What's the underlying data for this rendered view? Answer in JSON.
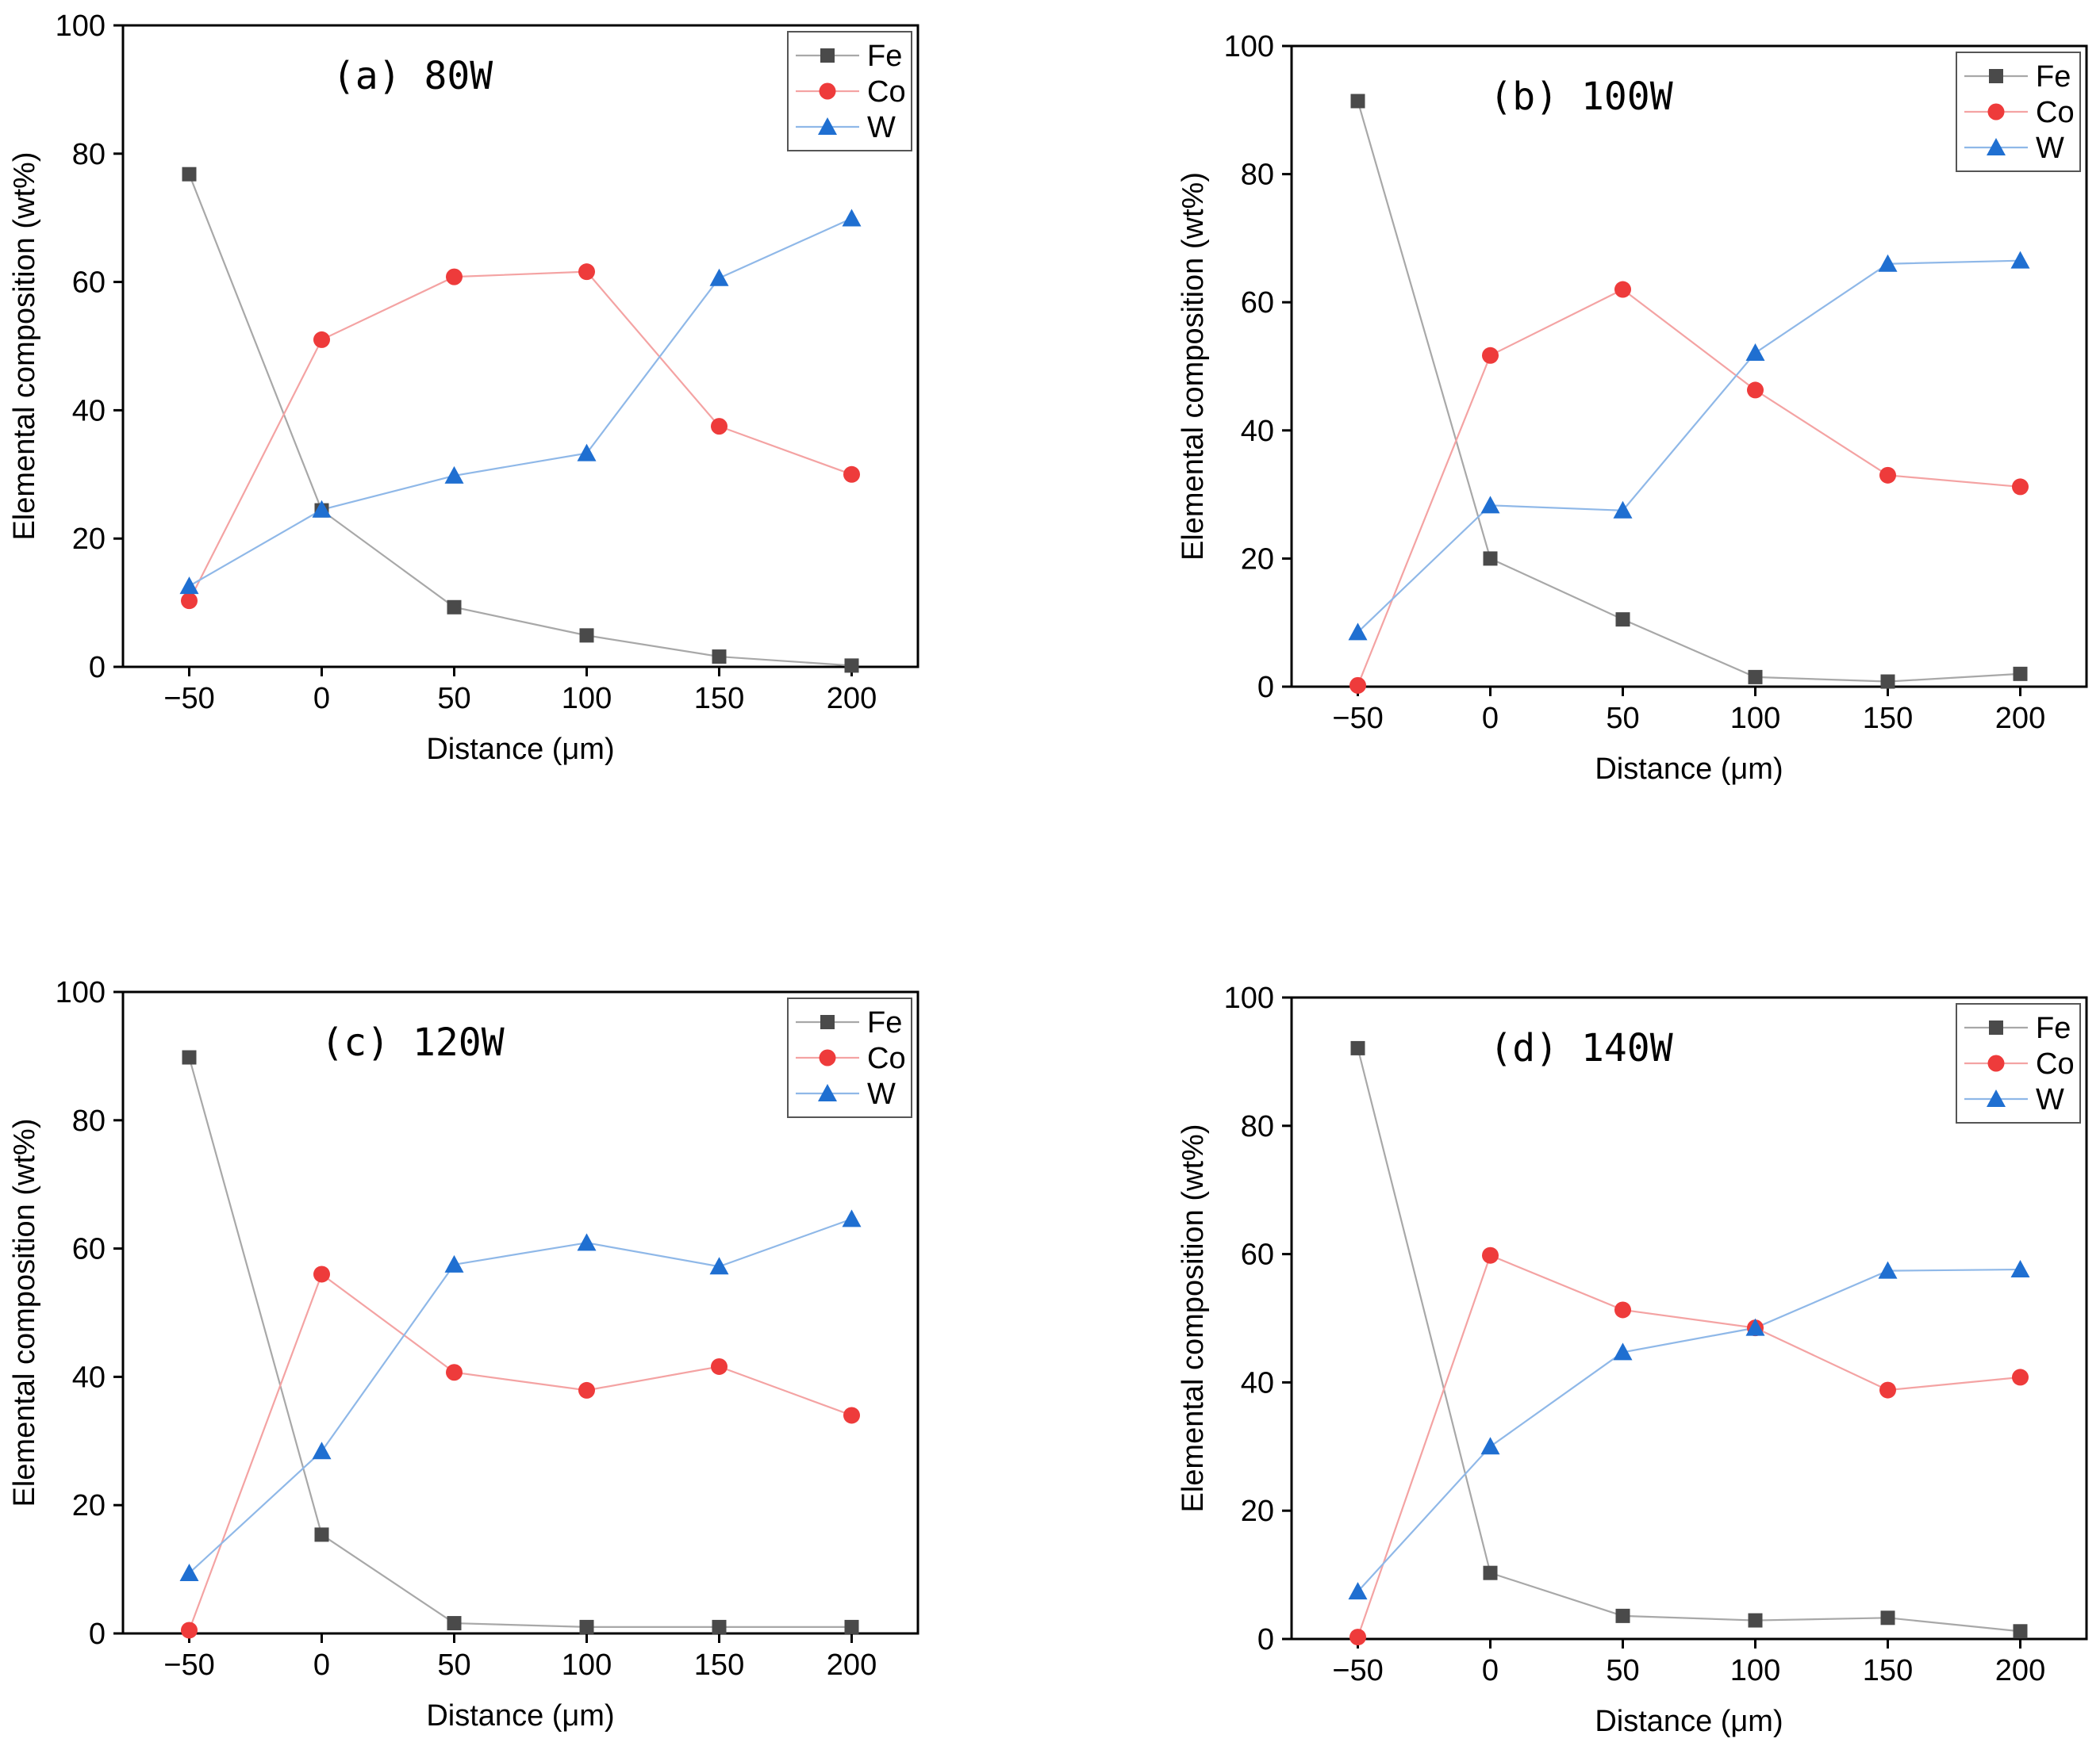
{
  "chart_data": [
    {
      "type": "line",
      "title": "(a)  80W",
      "xlabel": "Distance (μm)",
      "ylabel": "Elemental composition (wt%)",
      "x": [
        -50,
        0,
        50,
        100,
        150,
        200
      ],
      "xticks": [
        "-50",
        "0",
        "50",
        "100",
        "150",
        "200"
      ],
      "yticks": [
        "0",
        "20",
        "40",
        "60",
        "80",
        "100"
      ],
      "xlim": [
        -75,
        225
      ],
      "ylim": [
        0,
        100
      ],
      "legend_position": "top-right",
      "series": [
        {
          "name": "Fe",
          "color": "#4a4a4a",
          "line_color": "#a8a8a8",
          "marker": "square",
          "values": [
            76.8,
            24.4,
            9.3,
            4.9,
            1.6,
            0.2
          ]
        },
        {
          "name": "Co",
          "color": "#ee3b3b",
          "line_color": "#f4a3a3",
          "marker": "circle",
          "values": [
            10.3,
            51.0,
            60.8,
            61.6,
            37.5,
            30.0
          ]
        },
        {
          "name": "W",
          "color": "#1f6fd1",
          "line_color": "#8fb8e8",
          "marker": "triangle",
          "values": [
            12.6,
            24.5,
            29.8,
            33.3,
            60.6,
            69.9
          ]
        }
      ]
    },
    {
      "type": "line",
      "title": "(b)  100W",
      "xlabel": "Distance (μm)",
      "ylabel": "Elemental composition (wt%)",
      "x": [
        -50,
        0,
        50,
        100,
        150,
        200
      ],
      "xticks": [
        "-50",
        "0",
        "50",
        "100",
        "150",
        "200"
      ],
      "yticks": [
        "0",
        "20",
        "40",
        "60",
        "80",
        "100"
      ],
      "xlim": [
        -75,
        225
      ],
      "ylim": [
        0,
        100
      ],
      "legend_position": "top-right",
      "series": [
        {
          "name": "Fe",
          "color": "#4a4a4a",
          "line_color": "#a8a8a8",
          "marker": "square",
          "values": [
            91.4,
            20.0,
            10.5,
            1.5,
            0.8,
            2.0
          ]
        },
        {
          "name": "Co",
          "color": "#ee3b3b",
          "line_color": "#f4a3a3",
          "marker": "circle",
          "values": [
            0.2,
            51.7,
            62.0,
            46.3,
            33.0,
            31.2
          ]
        },
        {
          "name": "W",
          "color": "#1f6fd1",
          "line_color": "#8fb8e8",
          "marker": "triangle",
          "values": [
            8.5,
            28.3,
            27.5,
            52.1,
            66.0,
            66.5
          ]
        }
      ]
    },
    {
      "type": "line",
      "title": "(c)  120W",
      "xlabel": "Distance (μm)",
      "ylabel": "Elemental composition (wt%)",
      "x": [
        -50,
        0,
        50,
        100,
        150,
        200
      ],
      "xticks": [
        "-50",
        "0",
        "50",
        "100",
        "150",
        "200"
      ],
      "yticks": [
        "0",
        "20",
        "40",
        "60",
        "80",
        "100"
      ],
      "xlim": [
        -75,
        225
      ],
      "ylim": [
        0,
        100
      ],
      "legend_position": "top-right",
      "series": [
        {
          "name": "Fe",
          "color": "#4a4a4a",
          "line_color": "#a8a8a8",
          "marker": "square",
          "values": [
            89.8,
            15.4,
            1.6,
            1.0,
            1.0,
            1.0
          ]
        },
        {
          "name": "Co",
          "color": "#ee3b3b",
          "line_color": "#f4a3a3",
          "marker": "circle",
          "values": [
            0.5,
            56.0,
            40.7,
            37.9,
            41.6,
            34.0
          ]
        },
        {
          "name": "W",
          "color": "#1f6fd1",
          "line_color": "#8fb8e8",
          "marker": "triangle",
          "values": [
            9.4,
            28.4,
            57.5,
            60.9,
            57.2,
            64.6
          ]
        }
      ]
    },
    {
      "type": "line",
      "title": "(d)  140W",
      "xlabel": "Distance (μm)",
      "ylabel": "Elemental composition (wt%)",
      "x": [
        -50,
        0,
        50,
        100,
        150,
        200
      ],
      "xticks": [
        "-50",
        "0",
        "50",
        "100",
        "150",
        "200"
      ],
      "yticks": [
        "0",
        "20",
        "40",
        "60",
        "80",
        "100"
      ],
      "xlim": [
        -75,
        225
      ],
      "ylim": [
        0,
        100
      ],
      "legend_position": "top-right",
      "series": [
        {
          "name": "Fe",
          "color": "#4a4a4a",
          "line_color": "#a8a8a8",
          "marker": "square",
          "values": [
            92.1,
            10.3,
            3.6,
            2.9,
            3.3,
            1.2
          ]
        },
        {
          "name": "Co",
          "color": "#ee3b3b",
          "line_color": "#f4a3a3",
          "marker": "circle",
          "values": [
            0.3,
            59.8,
            51.3,
            48.5,
            38.8,
            40.8
          ]
        },
        {
          "name": "W",
          "color": "#1f6fd1",
          "line_color": "#8fb8e8",
          "marker": "triangle",
          "values": [
            7.4,
            30.0,
            44.7,
            48.5,
            57.4,
            57.6
          ]
        }
      ]
    }
  ]
}
